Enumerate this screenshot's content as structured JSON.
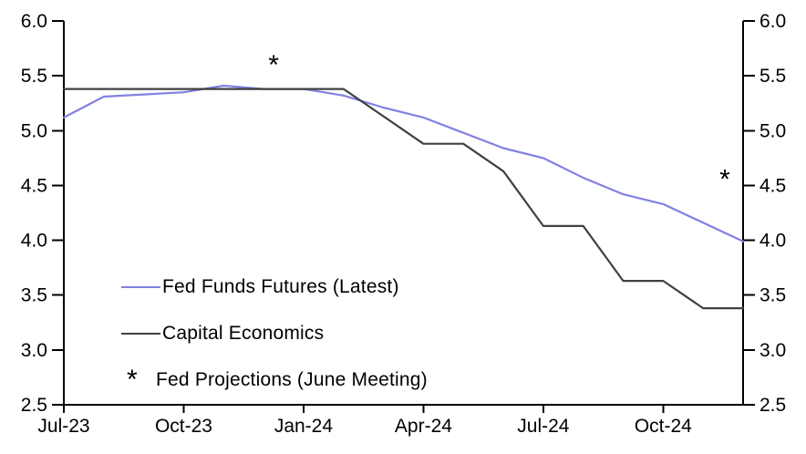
{
  "chart_data": {
    "type": "line",
    "title": "",
    "x": [
      "Jul-23",
      "Aug-23",
      "Sep-23",
      "Oct-23",
      "Nov-23",
      "Dec-23",
      "Jan-24",
      "Feb-24",
      "Mar-24",
      "Apr-24",
      "May-24",
      "Jun-24",
      "Jul-24",
      "Aug-24",
      "Sep-24",
      "Oct-24",
      "Nov-24",
      "Dec-24"
    ],
    "x_tick_labels": [
      "Jul-23",
      "Oct-23",
      "Jan-24",
      "Apr-24",
      "Jul-24",
      "Oct-24"
    ],
    "x_tick_indices": [
      0,
      3,
      6,
      9,
      12,
      15
    ],
    "ylim": [
      2.5,
      6.0
    ],
    "y_tick_step": 0.5,
    "grid": false,
    "axes_sides": [
      "left",
      "right"
    ],
    "series": [
      {
        "name": "Fed Funds Futures (Latest)",
        "color": "#8181e3",
        "values": [
          5.12,
          5.31,
          5.33,
          5.35,
          5.41,
          5.38,
          5.38,
          5.32,
          5.21,
          5.12,
          4.98,
          4.84,
          4.75,
          4.57,
          4.42,
          4.33,
          4.16,
          3.99
        ]
      },
      {
        "name": "Capital Economics",
        "color": "#404040",
        "values": [
          5.38,
          5.38,
          5.38,
          5.38,
          5.38,
          5.38,
          5.38,
          5.38,
          5.13,
          4.88,
          4.88,
          4.63,
          4.13,
          4.13,
          3.63,
          3.63,
          3.38,
          3.38
        ]
      }
    ],
    "markers": {
      "symbol": "*",
      "name": "Fed Projections (June Meeting)",
      "color": "#000000",
      "points": [
        {
          "x": "Dec-23",
          "value": 5.6
        },
        {
          "x": "Dec-24",
          "value": 4.6
        }
      ]
    },
    "legend_position": "inside-lower-left"
  },
  "axis_labels": {
    "y_left": [
      "6.0",
      "5.5",
      "5.0",
      "4.5",
      "4.0",
      "3.5",
      "3.0",
      "2.5"
    ],
    "y_right": [
      "6.0",
      "5.5",
      "5.0",
      "4.5",
      "4.0",
      "3.5",
      "3.0",
      "2.5"
    ]
  },
  "legend": {
    "items": [
      {
        "label": "Fed Funds Futures (Latest)",
        "swatch": "line",
        "color": "#8181e3"
      },
      {
        "label": "Capital Economics",
        "swatch": "line",
        "color": "#404040"
      },
      {
        "label": "Fed Projections (June Meeting)",
        "swatch": "asterisk",
        "color": "#000000"
      }
    ]
  },
  "colors": {
    "axis": "#000000",
    "background": "#ffffff"
  }
}
